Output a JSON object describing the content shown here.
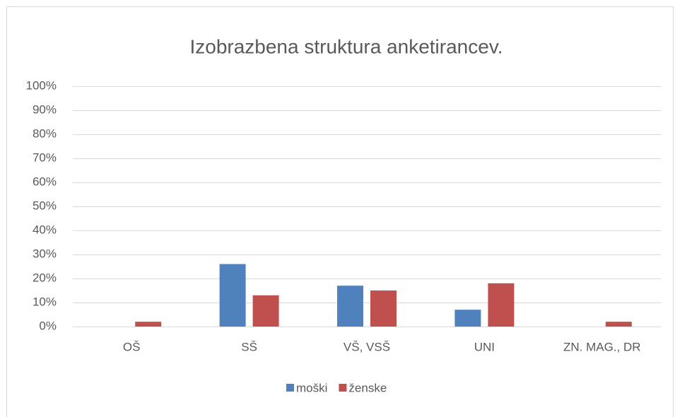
{
  "chart_data": {
    "type": "bar",
    "title": "Izobrazbena struktura anketirancev.",
    "categories": [
      "OŠ",
      "SŠ",
      "VŠ, VSŠ",
      "UNI",
      "ZN. MAG., DR"
    ],
    "series": [
      {
        "name": "moški",
        "color": "#4f81bd",
        "values": [
          0,
          26,
          17,
          7,
          0
        ]
      },
      {
        "name": "ženske",
        "color": "#c0504d",
        "values": [
          2,
          13,
          15,
          18,
          2
        ]
      }
    ],
    "ylim": [
      0,
      100
    ],
    "yticks": [
      {
        "value": 0,
        "label": "0%"
      },
      {
        "value": 10,
        "label": "10%"
      },
      {
        "value": 20,
        "label": "20%"
      },
      {
        "value": 30,
        "label": "30%"
      },
      {
        "value": 40,
        "label": "40%"
      },
      {
        "value": 50,
        "label": "50%"
      },
      {
        "value": 60,
        "label": "60%"
      },
      {
        "value": 70,
        "label": "70%"
      },
      {
        "value": 80,
        "label": "80%"
      },
      {
        "value": 90,
        "label": "90%"
      },
      {
        "value": 100,
        "label": "100%"
      }
    ],
    "grid": true,
    "legend": "bottom"
  }
}
